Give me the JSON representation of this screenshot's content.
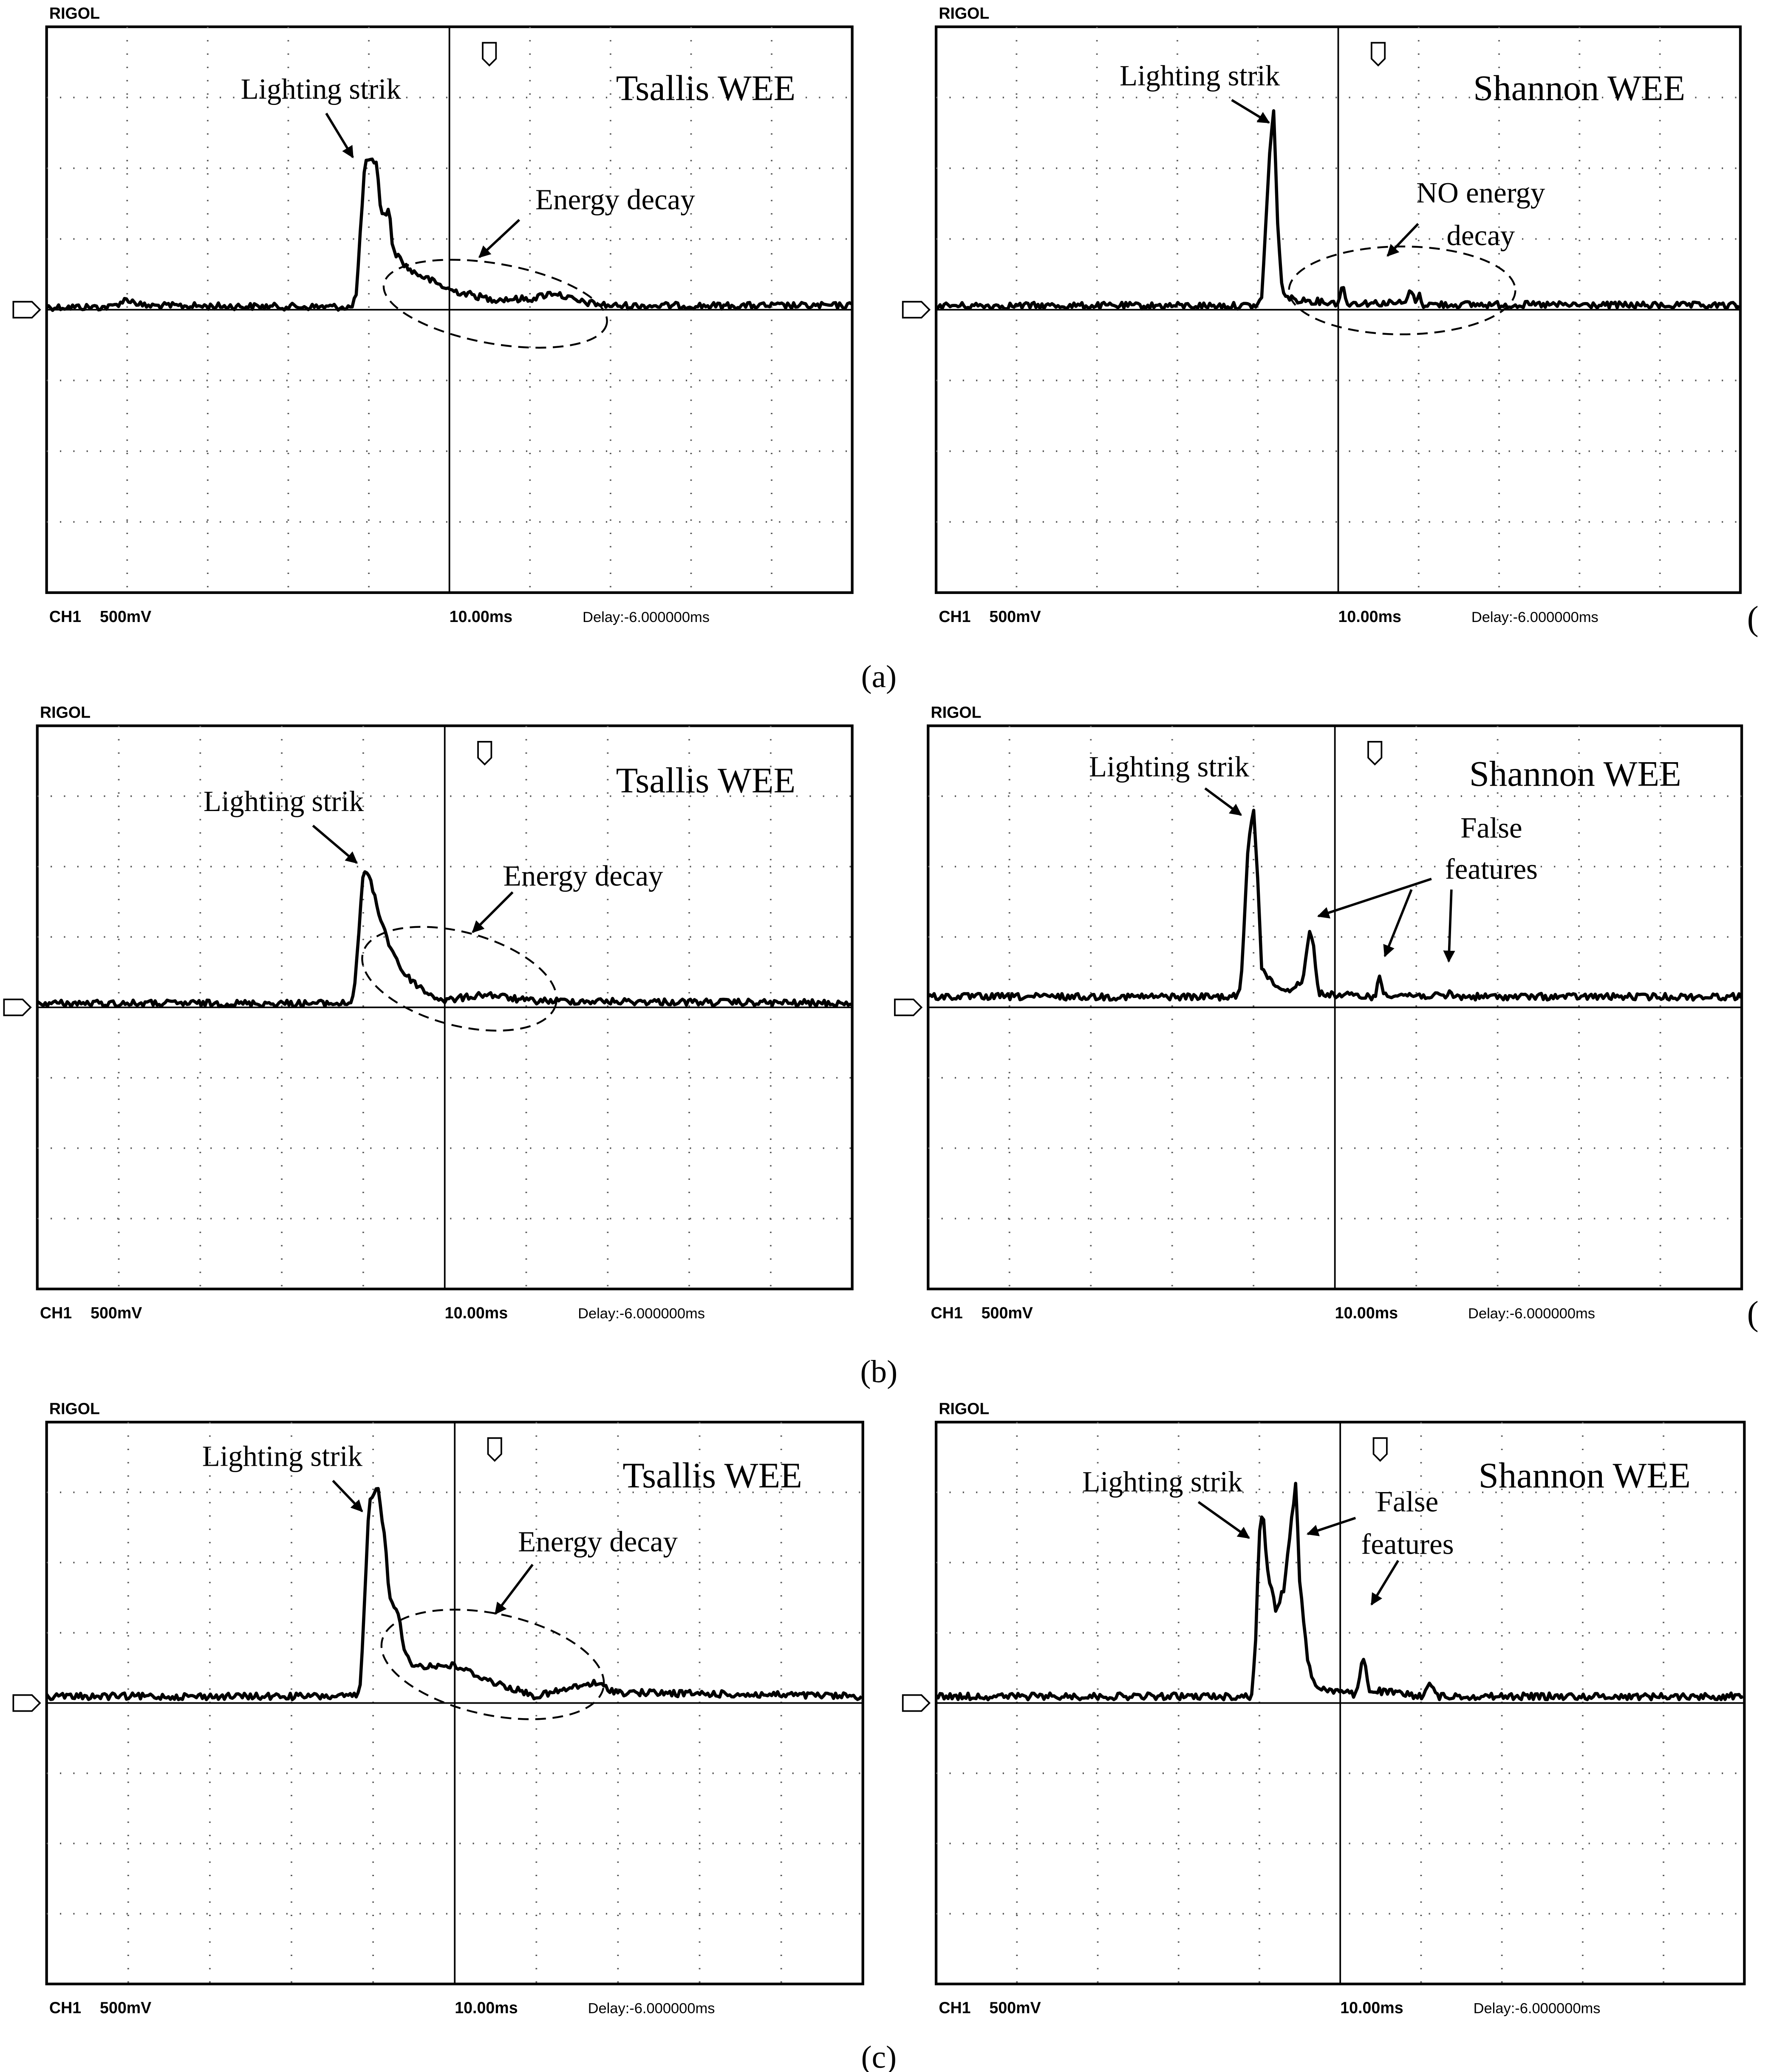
{
  "panels": [
    {
      "brand": "RIGOL",
      "channel": "CH1",
      "scale": "500mV",
      "timebase": "10.00ms",
      "delay": "Delay:-6.000000ms",
      "title": "Tsallis WEE",
      "annotations": [
        "Lighting strik",
        "Energy decay"
      ]
    },
    {
      "brand": "RIGOL",
      "channel": "CH1",
      "scale": "500mV",
      "timebase": "10.00ms",
      "delay": "Delay:-6.000000ms",
      "title": "Shannon WEE",
      "annotations": [
        "Lighting strik",
        "NO energy",
        "decay"
      ]
    },
    {
      "brand": "RIGOL",
      "channel": "CH1",
      "scale": "500mV",
      "timebase": "10.00ms",
      "delay": "Delay:-6.000000ms",
      "title": "Tsallis WEE",
      "annotations": [
        "Lighting strik",
        "Energy decay"
      ]
    },
    {
      "brand": "RIGOL",
      "channel": "CH1",
      "scale": "500mV",
      "timebase": "10.00ms",
      "delay": "Delay:-6.000000ms",
      "title": "Shannon WEE",
      "annotations": [
        "Lighting strik",
        "False",
        "features"
      ]
    },
    {
      "brand": "RIGOL",
      "channel": "CH1",
      "scale": "500mV",
      "timebase": "10.00ms",
      "delay": "Delay:-6.000000ms",
      "title": "Tsallis WEE",
      "annotations": [
        "Lighting strik",
        "Energy decay"
      ]
    },
    {
      "brand": "RIGOL",
      "channel": "CH1",
      "scale": "500mV",
      "timebase": "10.00ms",
      "delay": "Delay:-6.000000ms",
      "title": "Shannon WEE",
      "annotations": [
        "Lighting strik",
        "False",
        "features"
      ]
    }
  ],
  "captions": [
    "(a)",
    "(b)",
    "(c)"
  ],
  "edge_marks": [
    "(",
    "("
  ]
}
